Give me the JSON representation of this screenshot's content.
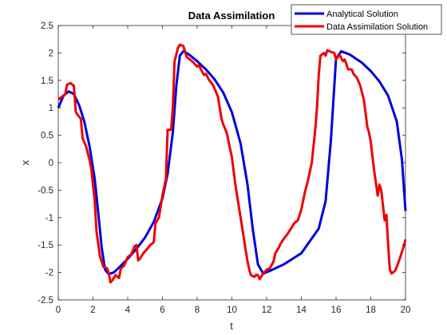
{
  "chart_data": {
    "type": "line",
    "title": "Data Assimilation",
    "xlabel": "t",
    "ylabel": "x",
    "xlim": [
      0,
      20
    ],
    "ylim": [
      -2.5,
      2.5
    ],
    "xticks": [
      "0",
      "2",
      "4",
      "6",
      "8",
      "10",
      "12",
      "14",
      "16",
      "18",
      "20"
    ],
    "yticks": [
      "-2.5",
      "-2",
      "-1.5",
      "-1",
      "-0.5",
      "0",
      "0.5",
      "1",
      "1.5",
      "2",
      "2.5"
    ],
    "grid": false,
    "legend_position": "top-right",
    "series": [
      {
        "name": "Analytical Solution",
        "color": "#0000dd",
        "x": [
          0,
          0.3,
          0.6,
          0.9,
          1.2,
          1.5,
          1.8,
          2.1,
          2.3,
          2.5,
          2.7,
          2.9,
          3.2,
          3.6,
          4.0,
          4.5,
          5.0,
          5.5,
          6.0,
          6.3,
          6.6,
          6.8,
          7.0,
          7.2,
          7.5,
          8.0,
          8.5,
          9.0,
          9.5,
          10.0,
          10.5,
          10.9,
          11.2,
          11.5,
          11.8,
          12.2,
          13.0,
          14.0,
          15.0,
          15.4,
          15.7,
          16.0,
          16.3,
          16.8,
          17.5,
          18.0,
          18.5,
          19.0,
          19.5,
          19.8,
          20.0
        ],
        "y": [
          1.0,
          1.22,
          1.3,
          1.25,
          1.05,
          0.75,
          0.3,
          -0.3,
          -0.9,
          -1.55,
          -1.95,
          -2.03,
          -2.0,
          -1.88,
          -1.75,
          -1.57,
          -1.36,
          -1.08,
          -0.65,
          -0.2,
          0.55,
          1.4,
          1.95,
          2.03,
          1.98,
          1.85,
          1.7,
          1.52,
          1.28,
          0.92,
          0.35,
          -0.4,
          -1.2,
          -1.85,
          -2.02,
          -1.97,
          -1.85,
          -1.65,
          -1.2,
          -0.7,
          0.4,
          1.9,
          2.03,
          1.97,
          1.82,
          1.67,
          1.48,
          1.22,
          0.75,
          0.05,
          -0.88
        ]
      },
      {
        "name": "Data Assimilation Solution",
        "color": "#ee0000",
        "x": [
          0,
          0.2,
          0.4,
          0.5,
          0.7,
          0.9,
          1.0,
          1.05,
          1.3,
          1.4,
          1.6,
          1.8,
          1.9,
          2.1,
          2.2,
          2.4,
          2.6,
          2.8,
          2.9,
          3.0,
          3.1,
          3.3,
          3.5,
          3.6,
          3.8,
          3.9,
          4.0,
          4.2,
          4.4,
          4.5,
          4.6,
          4.7,
          4.9,
          5.1,
          5.3,
          5.5,
          5.6,
          5.8,
          5.9,
          6.0,
          6.2,
          6.3,
          6.5,
          6.6,
          6.7,
          6.9,
          7.0,
          7.2,
          7.4,
          7.5,
          7.6,
          7.8,
          8.0,
          8.1,
          8.3,
          8.4,
          8.5,
          8.7,
          8.9,
          9.0,
          9.2,
          9.4,
          9.5,
          9.7,
          9.9,
          10.0,
          10.2,
          10.4,
          10.6,
          10.8,
          10.9,
          11.0,
          11.1,
          11.3,
          11.4,
          11.5,
          11.6,
          11.8,
          12.0,
          12.2,
          12.4,
          12.5,
          12.7,
          12.8,
          13.0,
          13.2,
          13.4,
          13.6,
          13.8,
          14.0,
          14.2,
          14.4,
          14.6,
          14.8,
          14.9,
          15.0,
          15.1,
          15.3,
          15.4,
          15.5,
          15.7,
          15.9,
          16.0,
          16.2,
          16.4,
          16.5,
          16.7,
          16.9,
          17.0,
          17.2,
          17.4,
          17.6,
          17.8,
          17.9,
          18.0,
          18.1,
          18.2,
          18.4,
          18.5,
          18.6,
          18.8,
          18.9,
          19.0,
          19.1,
          19.2,
          19.4,
          19.5,
          19.7,
          19.9,
          20.0
        ],
        "y": [
          1.15,
          1.2,
          1.25,
          1.42,
          1.45,
          1.4,
          0.95,
          0.9,
          0.8,
          0.45,
          0.3,
          0.05,
          -0.1,
          -0.7,
          -1.25,
          -1.7,
          -1.9,
          -1.92,
          -2.0,
          -2.18,
          -2.15,
          -2.05,
          -2.1,
          -1.93,
          -1.87,
          -1.8,
          -1.72,
          -1.67,
          -1.52,
          -1.5,
          -1.78,
          -1.75,
          -1.65,
          -1.58,
          -1.5,
          -1.45,
          -1.1,
          -1.0,
          -0.8,
          -0.6,
          -0.3,
          0.6,
          0.6,
          1.0,
          1.85,
          2.1,
          2.15,
          2.13,
          1.93,
          1.9,
          1.88,
          1.82,
          1.75,
          1.78,
          1.65,
          1.6,
          1.62,
          1.5,
          1.42,
          1.35,
          1.2,
          0.8,
          0.7,
          0.55,
          0.25,
          0.1,
          -0.4,
          -0.8,
          -1.2,
          -1.6,
          -1.8,
          -1.95,
          -2.05,
          -2.08,
          -2.04,
          -2.05,
          -2.12,
          -2.02,
          -1.95,
          -1.92,
          -1.8,
          -1.65,
          -1.55,
          -1.48,
          -1.38,
          -1.3,
          -1.2,
          -1.1,
          -1.05,
          -0.85,
          -0.55,
          -0.3,
          0.0,
          0.6,
          1.0,
          1.6,
          1.95,
          2.0,
          1.95,
          2.05,
          2.02,
          2.0,
          1.88,
          1.97,
          1.85,
          1.88,
          1.7,
          1.7,
          1.62,
          1.55,
          1.4,
          1.15,
          0.65,
          0.55,
          0.38,
          0.1,
          -0.15,
          -0.6,
          -0.4,
          -0.5,
          -1.05,
          -0.95,
          -1.5,
          -1.95,
          -2.02,
          -1.97,
          -1.9,
          -1.72,
          -1.52,
          -1.4
        ]
      }
    ]
  }
}
